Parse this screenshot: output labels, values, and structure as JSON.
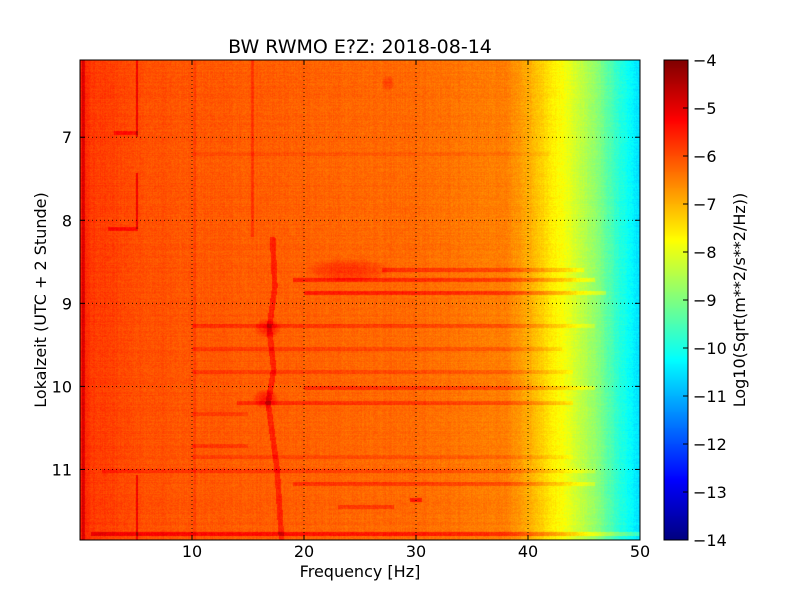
{
  "chart_data": {
    "type": "heatmap",
    "title": "BW RWMO E?Z: 2018-08-14",
    "xlabel": "Frequency [Hz]",
    "ylabel": "Lokalzeit (UTC + 2 Stunde)",
    "xlim": [
      0,
      50
    ],
    "ylim": [
      6.07,
      11.85
    ],
    "y_axis_inverted": true,
    "x_ticks": [
      10,
      20,
      30,
      40,
      50
    ],
    "x_tick_labels": [
      "10",
      "20",
      "30",
      "40",
      "50"
    ],
    "y_ticks": [
      7,
      8,
      9,
      10,
      11
    ],
    "y_tick_labels": [
      "7",
      "8",
      "9",
      "10",
      "11"
    ],
    "grid": true,
    "colormap": "jet",
    "colorbar": {
      "label": "Log10(Sqrt(m**2/s**2/Hz))",
      "range": [
        -14,
        -4
      ],
      "ticks": [
        -4,
        -5,
        -6,
        -7,
        -8,
        -9,
        -10,
        -11,
        -12,
        -13,
        -14
      ],
      "tick_labels": [
        "−4",
        "−5",
        "−6",
        "−7",
        "−8",
        "−9",
        "−10",
        "−11",
        "−12",
        "−13",
        "−14"
      ]
    },
    "spectrum_profile": {
      "frequency_hz": [
        0,
        1,
        5,
        10,
        20,
        30,
        38,
        40,
        42,
        44,
        46,
        48,
        50
      ],
      "level": [
        -5.5,
        -5.8,
        -6.0,
        -6.1,
        -6.2,
        -6.3,
        -6.5,
        -6.9,
        -7.5,
        -8.1,
        -8.8,
        -9.8,
        -10.6
      ]
    },
    "features": [
      {
        "kind": "band",
        "y": 6.95,
        "x_from": 3,
        "x_to": 5.2,
        "delta": 0.6
      },
      {
        "kind": "band",
        "y": 7.2,
        "x_from": 10,
        "x_to": 42,
        "delta": 0.15
      },
      {
        "kind": "band",
        "y": 8.1,
        "x_from": 2.5,
        "x_to": 5.2,
        "delta": 0.6
      },
      {
        "kind": "band",
        "y": 8.6,
        "x_from": 27,
        "x_to": 45,
        "delta": 0.55
      },
      {
        "kind": "band",
        "y": 8.72,
        "x_from": 19,
        "x_to": 46,
        "delta": 0.65
      },
      {
        "kind": "band",
        "y": 8.88,
        "x_from": 20,
        "x_to": 47,
        "delta": 0.7
      },
      {
        "kind": "band",
        "y": 9.27,
        "x_from": 10,
        "x_to": 46,
        "delta": 0.45
      },
      {
        "kind": "band",
        "y": 9.55,
        "x_from": 10,
        "x_to": 43,
        "delta": 0.35
      },
      {
        "kind": "band",
        "y": 9.83,
        "x_from": 10,
        "x_to": 44,
        "delta": 0.35
      },
      {
        "kind": "band",
        "y": 10.02,
        "x_from": 20,
        "x_to": 46,
        "delta": 0.55
      },
      {
        "kind": "band",
        "y": 10.2,
        "x_from": 14,
        "x_to": 44,
        "delta": 0.5
      },
      {
        "kind": "band",
        "y": 10.33,
        "x_from": 10,
        "x_to": 15,
        "delta": 0.3
      },
      {
        "kind": "band",
        "y": 10.72,
        "x_from": 10,
        "x_to": 15,
        "delta": 0.35
      },
      {
        "kind": "band",
        "y": 10.85,
        "x_from": 10,
        "x_to": 44,
        "delta": 0.25
      },
      {
        "kind": "band",
        "y": 11.02,
        "x_from": 2,
        "x_to": 46,
        "delta": 0.35
      },
      {
        "kind": "band",
        "y": 11.18,
        "x_from": 19,
        "x_to": 46,
        "delta": 0.5
      },
      {
        "kind": "band",
        "y": 11.37,
        "x_from": 29.5,
        "x_to": 30.5,
        "delta": 0.8
      },
      {
        "kind": "band",
        "y": 11.45,
        "x_from": 23,
        "x_to": 28,
        "delta": 0.45
      },
      {
        "kind": "band",
        "y": 11.78,
        "x_from": 1,
        "x_to": 50,
        "delta": 0.8
      },
      {
        "kind": "line",
        "x": 5.1,
        "y_from": 6.07,
        "y_to": 7.0,
        "delta": 0.9
      },
      {
        "kind": "line",
        "x": 5.1,
        "y_from": 7.43,
        "y_to": 8.1,
        "delta": 0.9
      },
      {
        "kind": "line",
        "x": 5.1,
        "y_from": 11.07,
        "y_to": 11.85,
        "delta": 0.9
      },
      {
        "kind": "line",
        "x": 15.4,
        "y_from": 6.07,
        "y_to": 8.2,
        "delta": 0.4
      },
      {
        "kind": "line",
        "x": 10.2,
        "y_from": 6.07,
        "y_to": 11.85,
        "delta": 0.2
      },
      {
        "kind": "line",
        "x": 0.3,
        "y_from": 6.07,
        "y_to": 11.85,
        "delta": 0.7
      },
      {
        "kind": "trace",
        "points": [
          [
            17.2,
            8.2
          ],
          [
            17.4,
            8.8
          ],
          [
            16.9,
            9.3
          ],
          [
            17.3,
            9.8
          ],
          [
            16.8,
            10.2
          ],
          [
            17.2,
            10.6
          ],
          [
            17.6,
            11.0
          ],
          [
            18.0,
            11.85
          ]
        ],
        "delta": 0.6
      },
      {
        "kind": "blob",
        "x": 24,
        "y": 8.6,
        "rx": 4,
        "ry": 0.15,
        "delta": 0.5
      },
      {
        "kind": "blob",
        "x": 16.8,
        "y": 9.3,
        "rx": 1.2,
        "ry": 0.12,
        "delta": 0.6
      },
      {
        "kind": "blob",
        "x": 16.6,
        "y": 10.15,
        "rx": 1.2,
        "ry": 0.12,
        "delta": 0.6
      },
      {
        "kind": "blob",
        "x": 27.5,
        "y": 6.35,
        "rx": 0.6,
        "ry": 0.1,
        "delta": 0.4
      }
    ]
  }
}
